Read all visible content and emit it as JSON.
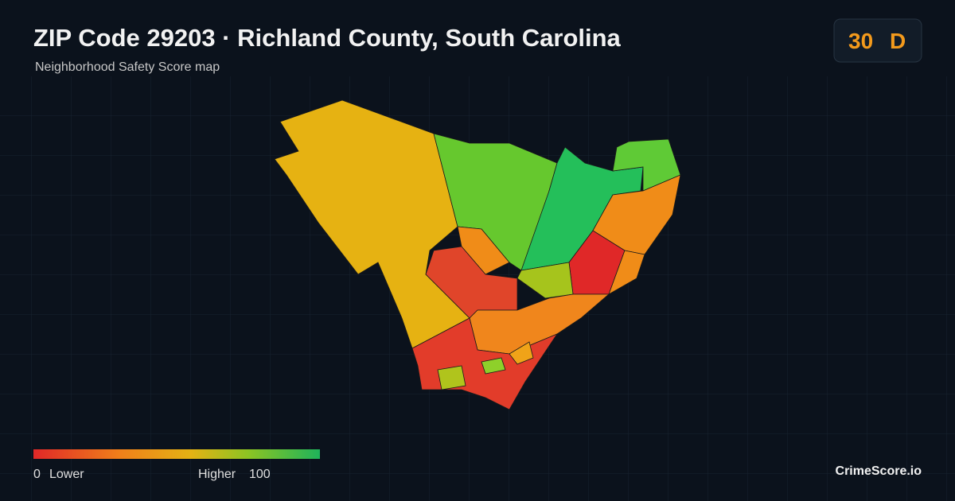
{
  "header": {
    "title": "ZIP Code 29203 · Richland County, South Carolina",
    "subtitle": "Neighborhood Safety Score map"
  },
  "score": {
    "value": 30,
    "grade": "D"
  },
  "legend": {
    "min": 0,
    "min_label": "Lower",
    "max_label": "Higher",
    "max": 100
  },
  "brand": "CrimeScore.io"
}
